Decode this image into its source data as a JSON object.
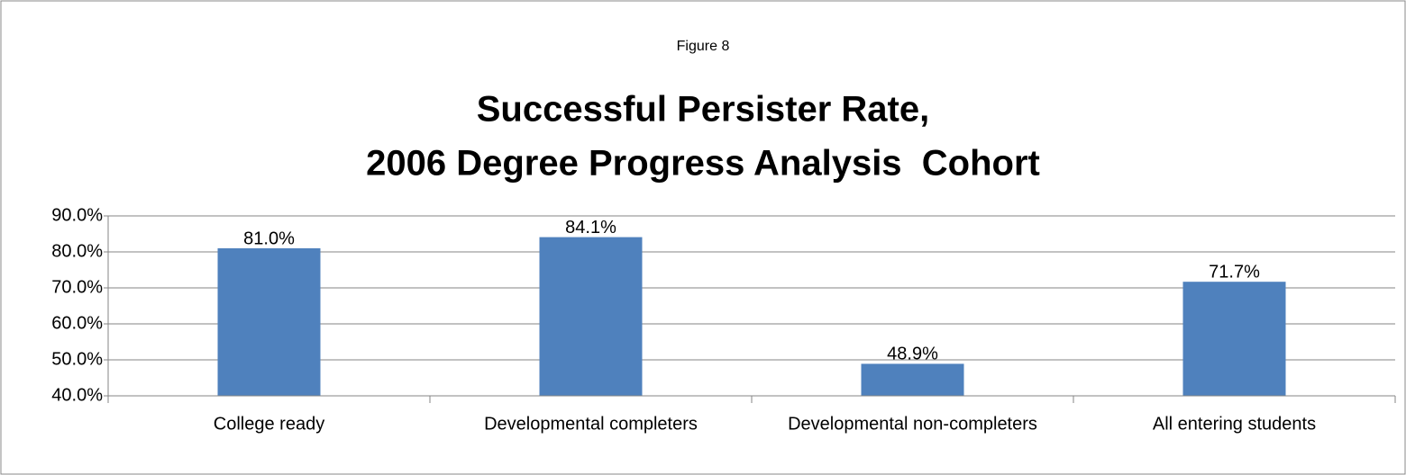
{
  "chart_data": {
    "type": "bar",
    "caption": "Figure 8",
    "title": [
      "Successful Persister Rate,",
      "2006 Degree Progress Analysis  Cohort"
    ],
    "categories": [
      "College ready",
      "Developmental completers",
      "Developmental non-completers",
      "All entering students"
    ],
    "values": [
      81.0,
      84.1,
      48.9,
      71.7
    ],
    "value_labels": [
      "81.0%",
      "84.1%",
      "48.9%",
      "71.7%"
    ],
    "color": "#4f81bd",
    "ylim": [
      40,
      90
    ],
    "yticks": [
      {
        "value": 40,
        "label": "40.0%"
      },
      {
        "value": 50,
        "label": "50.0%"
      },
      {
        "value": 60,
        "label": "60.0%"
      },
      {
        "value": 70,
        "label": "70.0%"
      },
      {
        "value": 80,
        "label": "80.0%"
      },
      {
        "value": 90,
        "label": "90.0%"
      }
    ],
    "grid": true
  }
}
